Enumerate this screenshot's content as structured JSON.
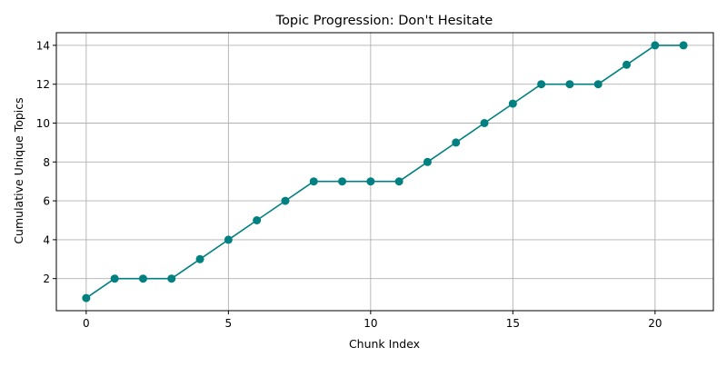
{
  "chart_data": {
    "type": "line",
    "title": "Topic Progression: Don't Hesitate",
    "xlabel": "Chunk Index",
    "ylabel": "Cumulative Unique Topics",
    "x": [
      0,
      1,
      2,
      3,
      4,
      5,
      6,
      7,
      8,
      9,
      10,
      11,
      12,
      13,
      14,
      15,
      16,
      17,
      18,
      19,
      20,
      21
    ],
    "series": [
      {
        "values": [
          1,
          2,
          2,
          2,
          3,
          4,
          5,
          6,
          7,
          7,
          7,
          7,
          8,
          9,
          10,
          11,
          12,
          12,
          12,
          13,
          14,
          14
        ]
      }
    ],
    "xlim": [
      -1.05,
      22.05
    ],
    "ylim": [
      0.35,
      14.65
    ],
    "xticks": [
      0,
      5,
      10,
      15,
      20
    ],
    "yticks": [
      2,
      4,
      6,
      8,
      10,
      12,
      14
    ],
    "grid": true,
    "colors": {
      "line": "#008080",
      "grid": "#b0b0b0"
    }
  }
}
